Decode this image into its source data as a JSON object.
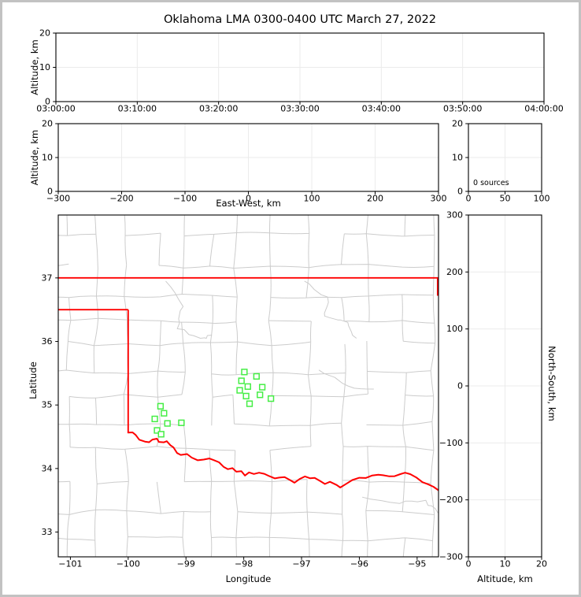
{
  "figure": {
    "title": "Oklahoma LMA 0300-0400 UTC March 27, 2022",
    "frame_color": "#c2c2c2",
    "background": "#ffffff"
  },
  "colors": {
    "spine": "#000000",
    "grid": "#ebebeb",
    "county_line": "#cccccc",
    "state_border": "#ff0000",
    "station_marker": "#45ee45",
    "text": "#000000"
  },
  "chart_data": [
    {
      "id": "time_height_panel",
      "type": "scatter",
      "xlabel": "",
      "ylabel": "Altitude, km",
      "xtick_labels": [
        "03:00:00",
        "03:10:00",
        "03:20:00",
        "03:30:00",
        "03:40:00",
        "03:50:00",
        "04:00:00"
      ],
      "ytick_labels_top_down": [
        "20",
        "10",
        "0"
      ],
      "ylim": [
        0,
        20
      ],
      "points": []
    },
    {
      "id": "east_west_height_panel",
      "type": "scatter",
      "xlabel": "East-West, km",
      "ylabel": "Altitude, km",
      "xtick_labels": [
        "−300",
        "−200",
        "−100",
        "0",
        "100",
        "200",
        "300"
      ],
      "ytick_labels_top_down": [
        "20",
        "10",
        "0"
      ],
      "xlim": [
        -300,
        300
      ],
      "ylim": [
        0,
        20
      ],
      "points": []
    },
    {
      "id": "altitude_histogram_panel",
      "type": "histogram",
      "annotation": "0 sources",
      "source_count": 0,
      "xtick_labels": [
        "0",
        "50",
        "100"
      ],
      "ytick_labels_top_down": [
        "20",
        "10",
        "0"
      ],
      "xlim": [
        0,
        100
      ],
      "ylim": [
        0,
        20
      ],
      "values": []
    },
    {
      "id": "map_panel",
      "type": "map-scatter",
      "xlabel": "Longitude",
      "ylabel": "Latitude",
      "xticks": [
        -101,
        -100,
        -99,
        -98,
        -97,
        -96,
        -95
      ],
      "xtick_labels": [
        "−101",
        "−100",
        "−99",
        "−98",
        "−97",
        "−96",
        "−95"
      ],
      "yticks": [
        33,
        34,
        35,
        36,
        37
      ],
      "ytick_labels": [
        "33",
        "34",
        "35",
        "36",
        "37"
      ],
      "xlim": [
        -101.21,
        -94.63
      ],
      "ylim": [
        32.61,
        37.99
      ],
      "stations_lon_lat": [
        [
          -99.44,
          34.98
        ],
        [
          -99.38,
          34.87
        ],
        [
          -99.54,
          34.78
        ],
        [
          -99.32,
          34.71
        ],
        [
          -99.08,
          34.72
        ],
        [
          -99.5,
          34.6
        ],
        [
          -99.43,
          34.54
        ],
        [
          -97.99,
          35.52
        ],
        [
          -97.78,
          35.45
        ],
        [
          -98.04,
          35.38
        ],
        [
          -97.93,
          35.29
        ],
        [
          -98.07,
          35.23
        ],
        [
          -97.68,
          35.28
        ],
        [
          -97.96,
          35.14
        ],
        [
          -97.72,
          35.16
        ],
        [
          -97.53,
          35.1
        ],
        [
          -97.9,
          35.02
        ]
      ],
      "state_border": {
        "north_lat": 37.0,
        "panhandle_south_lat": 36.5,
        "west_border_lon": -100.0,
        "west_border_south_lat": 34.565,
        "northeast_border_lon": -94.645,
        "northeast_border_south_lat": 36.72,
        "red_river_lon_lat": [
          [
            -100.0,
            34.565
          ],
          [
            -99.93,
            34.57
          ],
          [
            -99.87,
            34.52
          ],
          [
            -99.81,
            34.45
          ],
          [
            -99.72,
            34.43
          ],
          [
            -99.64,
            34.42
          ],
          [
            -99.58,
            34.45
          ],
          [
            -99.51,
            34.47
          ],
          [
            -99.46,
            34.42
          ],
          [
            -99.38,
            34.42
          ],
          [
            -99.33,
            34.43
          ],
          [
            -99.27,
            34.37
          ],
          [
            -99.21,
            34.33
          ],
          [
            -99.16,
            34.25
          ],
          [
            -99.08,
            34.21
          ],
          [
            -98.99,
            34.22
          ],
          [
            -98.91,
            34.18
          ],
          [
            -98.8,
            34.13
          ],
          [
            -98.69,
            34.14
          ],
          [
            -98.6,
            34.15
          ],
          [
            -98.51,
            34.12
          ],
          [
            -98.42,
            34.09
          ],
          [
            -98.35,
            34.03
          ],
          [
            -98.28,
            33.99
          ],
          [
            -98.19,
            34.01
          ],
          [
            -98.12,
            33.94
          ],
          [
            -98.05,
            33.96
          ],
          [
            -97.98,
            33.89
          ],
          [
            -97.9,
            33.94
          ],
          [
            -97.83,
            33.92
          ],
          [
            -97.74,
            33.93
          ],
          [
            -97.64,
            33.91
          ],
          [
            -97.55,
            33.88
          ],
          [
            -97.47,
            33.84
          ],
          [
            -97.38,
            33.86
          ],
          [
            -97.29,
            33.87
          ],
          [
            -97.2,
            33.82
          ],
          [
            -97.12,
            33.77
          ],
          [
            -97.03,
            33.83
          ],
          [
            -96.95,
            33.87
          ],
          [
            -96.86,
            33.85
          ],
          [
            -96.77,
            33.86
          ],
          [
            -96.68,
            33.81
          ],
          [
            -96.59,
            33.76
          ],
          [
            -96.5,
            33.79
          ],
          [
            -96.4,
            33.75
          ],
          [
            -96.32,
            33.7
          ],
          [
            -96.22,
            33.76
          ],
          [
            -96.12,
            33.82
          ],
          [
            -96.01,
            33.85
          ],
          [
            -95.9,
            33.86
          ],
          [
            -95.79,
            33.88
          ],
          [
            -95.68,
            33.9
          ],
          [
            -95.58,
            33.89
          ],
          [
            -95.48,
            33.87
          ],
          [
            -95.38,
            33.88
          ],
          [
            -95.29,
            33.92
          ],
          [
            -95.2,
            33.94
          ],
          [
            -95.11,
            33.92
          ],
          [
            -95.01,
            33.87
          ],
          [
            -94.91,
            33.79
          ],
          [
            -94.81,
            33.75
          ],
          [
            -94.72,
            33.72
          ],
          [
            -94.62,
            33.66
          ]
        ]
      }
    },
    {
      "id": "north_south_height_panel",
      "type": "scatter",
      "xlabel": "Altitude, km",
      "ylabel": "North-South, km",
      "xtick_labels": [
        "0",
        "10",
        "20"
      ],
      "ytick_labels_top_down": [
        "300",
        "200",
        "100",
        "0",
        "−100",
        "−200",
        "−300"
      ],
      "xlim": [
        0,
        20
      ],
      "ylim": [
        -300,
        300
      ],
      "points": []
    }
  ]
}
